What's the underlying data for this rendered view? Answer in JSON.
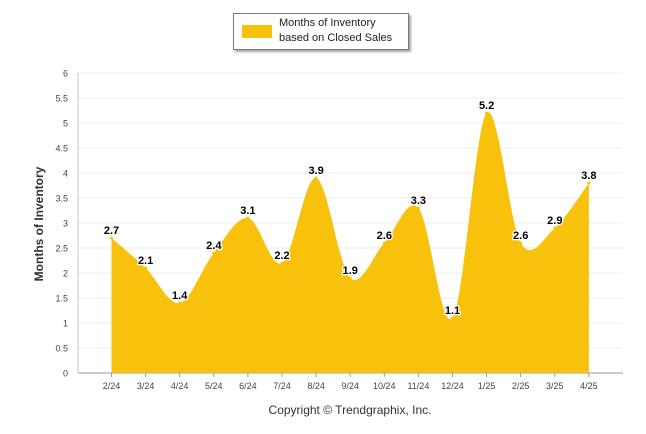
{
  "chart_data": {
    "type": "area",
    "categories": [
      "2/24",
      "3/24",
      "4/24",
      "5/24",
      "6/24",
      "7/24",
      "8/24",
      "9/24",
      "10/24",
      "11/24",
      "12/24",
      "1/25",
      "2/25",
      "3/25",
      "4/25"
    ],
    "series": [
      {
        "name": "Months of Inventory based on Closed Sales",
        "values": [
          2.7,
          2.1,
          1.4,
          2.4,
          3.1,
          2.2,
          3.9,
          1.9,
          2.6,
          3.3,
          1.1,
          5.2,
          2.6,
          2.9,
          3.8
        ]
      }
    ],
    "ylabel": "Months of Inventory",
    "xlabel": "",
    "ylim": [
      0,
      6
    ],
    "yticks": [
      "0",
      "0.5",
      "1",
      "1.5",
      "2",
      "2.5",
      "3",
      "3.5",
      "4",
      "4.5",
      "5",
      "5.5",
      "6"
    ],
    "data_labels": true,
    "grid": true,
    "legend_position": "top-center",
    "color": "#f8c10b"
  },
  "legend": {
    "label": "Months of Inventory based on Closed Sales",
    "color": "#f8c10b"
  },
  "credit": "Copyright © Trendgraphix, Inc."
}
